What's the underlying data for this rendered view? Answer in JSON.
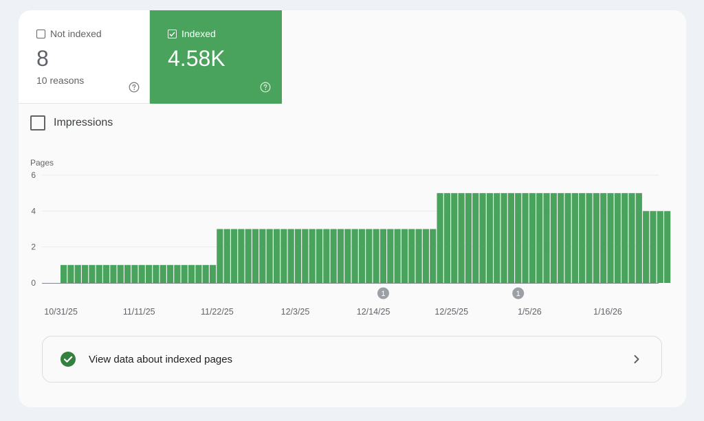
{
  "tiles": {
    "not_indexed": {
      "label": "Not indexed",
      "value": "8",
      "sub": "10 reasons",
      "checked": false
    },
    "indexed": {
      "label": "Indexed",
      "value": "4.58K",
      "checked": true
    }
  },
  "impressions": {
    "label": "Impressions",
    "checked": false
  },
  "footer": {
    "label": "View data about indexed pages",
    "icon": "check-circle-icon"
  },
  "colors": {
    "bar": "#4aa35c",
    "tile_indexed": "#4aa35c",
    "ok_icon": "#34803f",
    "marker": "#9aa0a6"
  },
  "chart_data": {
    "type": "bar",
    "ylabel": "Pages",
    "ylim": [
      0,
      6
    ],
    "yticks": [
      0,
      2,
      4,
      6
    ],
    "x_tick_labels": [
      "10/31/25",
      "11/11/25",
      "11/22/25",
      "12/3/25",
      "12/14/25",
      "12/25/25",
      "1/5/26",
      "1/16/26"
    ],
    "series": [
      {
        "values": [
          1,
          1,
          1,
          1,
          1,
          1,
          1,
          1,
          1,
          1,
          1,
          1,
          1,
          1,
          1,
          1,
          1,
          1,
          1,
          1,
          1,
          1,
          3,
          3,
          3,
          3,
          3,
          3,
          3,
          3,
          3,
          3,
          3,
          3,
          3,
          3,
          3,
          3,
          3,
          3,
          3,
          3,
          3,
          3,
          3,
          3,
          3,
          3,
          3,
          3,
          3,
          3,
          3,
          5,
          5,
          5,
          5,
          5,
          5,
          5,
          5,
          5,
          5,
          5,
          5,
          5,
          5,
          5,
          5,
          5,
          5,
          5,
          5,
          5,
          5,
          5,
          5,
          5,
          5,
          5,
          5,
          5,
          4,
          4,
          4,
          4
        ]
      }
    ],
    "annotations": [
      {
        "day_index": 45,
        "label": "1"
      },
      {
        "day_index": 64,
        "label": "1"
      }
    ],
    "grid": true
  }
}
